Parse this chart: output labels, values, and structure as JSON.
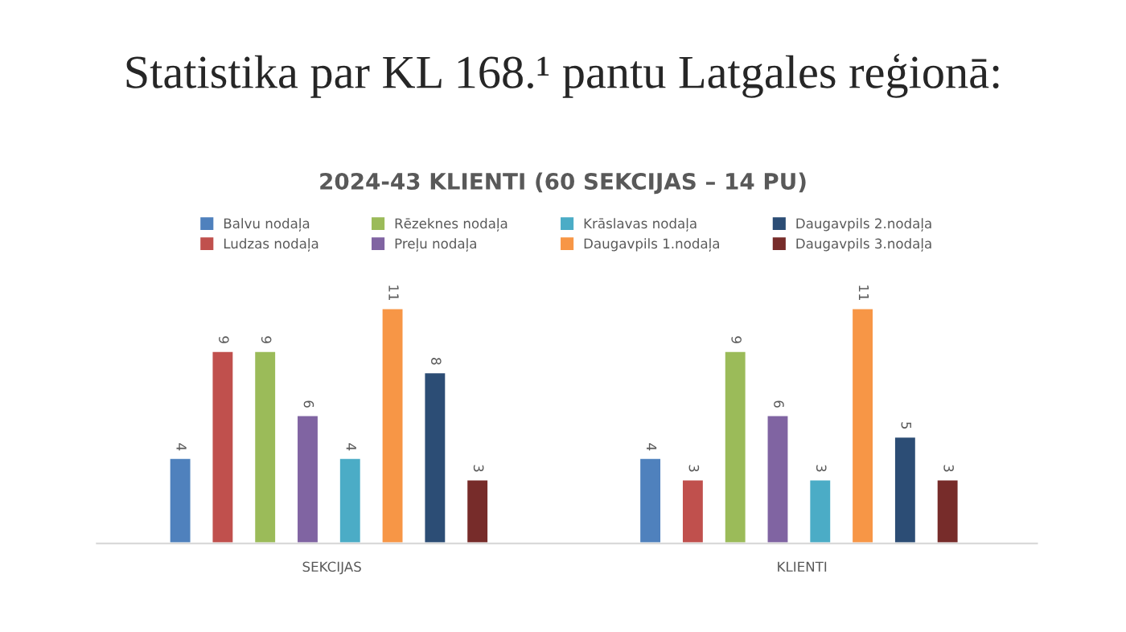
{
  "chart_data": {
    "type": "bar",
    "title": "Statistika par KL 168.¹ pantu Latgales reģionā:",
    "subtitle": "2024-43 KLIENTI (60 SEKCIJAS – 14 PU)",
    "categories": [
      "SEKCIJAS",
      "KLIENTI"
    ],
    "series": [
      {
        "name": "Balvu nodaļa",
        "color": "#4f81bd",
        "values": [
          4,
          4
        ]
      },
      {
        "name": "Ludzas nodaļa",
        "color": "#c0504d",
        "values": [
          9,
          3
        ]
      },
      {
        "name": "Rēzeknes nodaļa",
        "color": "#9bbb59",
        "values": [
          9,
          9
        ]
      },
      {
        "name": "Preļu nodaļa",
        "color": "#8064a2",
        "values": [
          6,
          6
        ]
      },
      {
        "name": "Krāslavas nodaļa",
        "color": "#4bacc6",
        "values": [
          4,
          3
        ]
      },
      {
        "name": "Daugavpils 1.nodaļa",
        "color": "#f79646",
        "values": [
          11,
          11
        ]
      },
      {
        "name": "Daugavpils 2.nodaļa",
        "color": "#2c4d75",
        "values": [
          8,
          5
        ]
      },
      {
        "name": "Daugavpils 3.nodaļa",
        "color": "#772c2a",
        "values": [
          3,
          3
        ]
      }
    ],
    "data_labels": true,
    "legend": "top",
    "grid": false
  }
}
